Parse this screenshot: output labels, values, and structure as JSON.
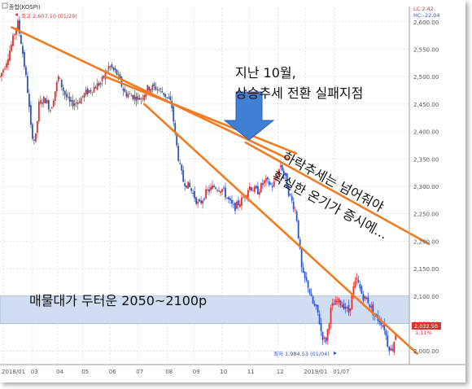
{
  "chart_data": {
    "type": "candlestick",
    "title": "종합(KOSPI)",
    "x_ticks": [
      "2018/01",
      "03",
      "04",
      "05",
      "06",
      "07",
      "08",
      "09",
      "10",
      "11",
      "12",
      "2019/01",
      "01/07"
    ],
    "y_ticks": [
      2000,
      2050,
      2100,
      2150,
      2200,
      2250,
      2300,
      2350,
      2400,
      2450,
      2500,
      2550,
      2600
    ],
    "ylim": [
      1975,
      2625
    ],
    "xlim": [
      0,
      1.05
    ],
    "price_path": [
      [
        0.0,
        2500
      ],
      [
        0.015,
        2525
      ],
      [
        0.03,
        2560
      ],
      [
        0.045,
        2600
      ],
      [
        0.055,
        2560
      ],
      [
        0.07,
        2480
      ],
      [
        0.08,
        2400
      ],
      [
        0.09,
        2380
      ],
      [
        0.1,
        2450
      ],
      [
        0.115,
        2460
      ],
      [
        0.13,
        2440
      ],
      [
        0.15,
        2500
      ],
      [
        0.165,
        2470
      ],
      [
        0.18,
        2450
      ],
      [
        0.2,
        2455
      ],
      [
        0.22,
        2470
      ],
      [
        0.24,
        2480
      ],
      [
        0.26,
        2490
      ],
      [
        0.28,
        2520
      ],
      [
        0.3,
        2505
      ],
      [
        0.32,
        2470
      ],
      [
        0.34,
        2465
      ],
      [
        0.36,
        2460
      ],
      [
        0.38,
        2480
      ],
      [
        0.4,
        2480
      ],
      [
        0.42,
        2470
      ],
      [
        0.44,
        2450
      ],
      [
        0.45,
        2390
      ],
      [
        0.46,
        2340
      ],
      [
        0.47,
        2310
      ],
      [
        0.485,
        2300
      ],
      [
        0.5,
        2280
      ],
      [
        0.51,
        2265
      ],
      [
        0.53,
        2290
      ],
      [
        0.55,
        2300
      ],
      [
        0.57,
        2295
      ],
      [
        0.59,
        2270
      ],
      [
        0.6,
        2260
      ],
      [
        0.62,
        2275
      ],
      [
        0.64,
        2300
      ],
      [
        0.66,
        2290
      ],
      [
        0.68,
        2310
      ],
      [
        0.7,
        2300
      ],
      [
        0.72,
        2340
      ],
      [
        0.73,
        2320
      ],
      [
        0.74,
        2290
      ],
      [
        0.75,
        2270
      ],
      [
        0.76,
        2250
      ],
      [
        0.775,
        2140
      ],
      [
        0.79,
        2120
      ],
      [
        0.8,
        2090
      ],
      [
        0.815,
        2070
      ],
      [
        0.825,
        2030
      ],
      [
        0.835,
        2015
      ],
      [
        0.85,
        2080
      ],
      [
        0.865,
        2090
      ],
      [
        0.88,
        2085
      ],
      [
        0.895,
        2070
      ],
      [
        0.905,
        2110
      ],
      [
        0.915,
        2130
      ],
      [
        0.93,
        2100
      ],
      [
        0.945,
        2090
      ],
      [
        0.96,
        2065
      ],
      [
        0.975,
        2055
      ],
      [
        0.985,
        2045
      ],
      [
        0.995,
        2010
      ],
      [
        1.005,
        2000
      ],
      [
        1.015,
        2032
      ]
    ],
    "annotations": {
      "high_label": "최고 2,607.10 (01/29)",
      "low_label": "최저 1,984.53 (01/04)",
      "price_tag": "2,032.50",
      "pct_tag": "1.11%",
      "legend_lc": "LC:2.42",
      "legend_hc": "HC:-22.04",
      "arrow_text_line1": "지난 10월,",
      "arrow_text_line2": "상승추세 전환 실패지점",
      "trend_text_line1": "하락추세는 넘어줘야",
      "trend_text_line2": "확실한 온기가 증시에...",
      "zone_text": "매물대가 두터운 2050~2100p"
    },
    "zone": {
      "low": 2050,
      "high": 2100,
      "color": "#c9d8ee"
    },
    "trendlines": [
      {
        "from": [
          0.03,
          2590
        ],
        "to": [
          0.74,
          2350
        ]
      },
      {
        "from": [
          0.27,
          2500
        ],
        "to": [
          0.76,
          2360
        ]
      },
      {
        "from": [
          0.37,
          2450
        ],
        "to": [
          1.07,
          1995
        ]
      },
      {
        "from": [
          0.63,
          2380
        ],
        "to": [
          1.1,
          2195
        ]
      }
    ],
    "colors": {
      "up": "#e0312f",
      "down": "#2a54c8",
      "trend": "#f47a20",
      "arrow": "#3f7fd4",
      "grid": "#d5d5d5",
      "axis_text": "#555555"
    }
  }
}
